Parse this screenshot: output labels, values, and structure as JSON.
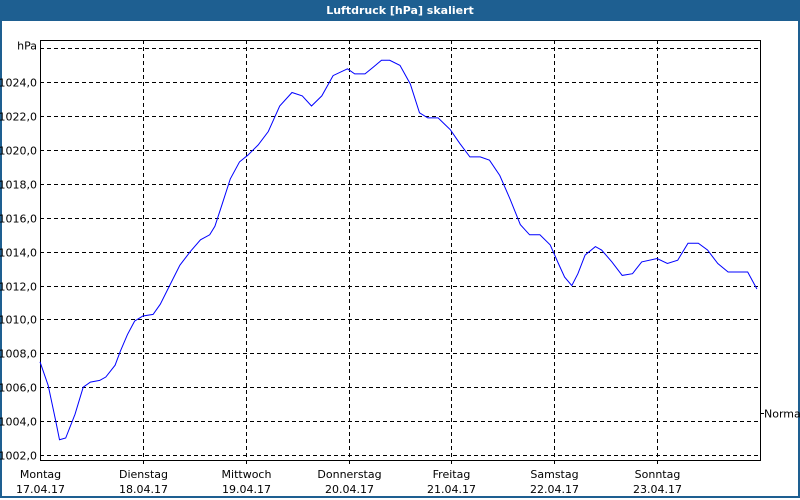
{
  "window": {
    "title": "Luftdruck [hPa] skaliert"
  },
  "chart_data": {
    "type": "line",
    "title": "Luftdruck [hPa] skaliert",
    "ylabel": "hPa",
    "xlabel": "",
    "ylim": [
      1001.7,
      1026.5
    ],
    "xlim": [
      0,
      7
    ],
    "grid": true,
    "y_ticks": [
      1002,
      1004,
      1006,
      1008,
      1010,
      1012,
      1014,
      1016,
      1018,
      1020,
      1022,
      1024
    ],
    "y_tick_labels": [
      "1002,0",
      "1004,0",
      "1006,0",
      "1008,0",
      "1010,0",
      "1012,0",
      "1014,0",
      "1016,0",
      "1018,0",
      "1020,0",
      "1022,0",
      "1024,0"
    ],
    "top_gridline": 1026,
    "x_ticks": [
      {
        "day": "Montag",
        "date": "17.04.17"
      },
      {
        "day": "Dienstag",
        "date": "18.04.17"
      },
      {
        "day": "Mittwoch",
        "date": "19.04.17"
      },
      {
        "day": "Donnerstag",
        "date": "20.04.17"
      },
      {
        "day": "Freitag",
        "date": "21.04.17"
      },
      {
        "day": "Samstag",
        "date": "22.04.17"
      },
      {
        "day": "Sonntag",
        "date": "23.04.17"
      }
    ],
    "reference": {
      "label": "Normal",
      "value": 1004.5
    },
    "series": [
      {
        "name": "Luftdruck",
        "color": "#0000ff",
        "x_days": [
          0,
          0.08,
          0.15,
          0.19,
          0.25,
          0.34,
          0.42,
          0.49,
          0.58,
          0.64,
          0.73,
          0.78,
          0.85,
          0.92,
          1.0,
          1.1,
          1.17,
          1.26,
          1.36,
          1.46,
          1.56,
          1.65,
          1.7,
          1.77,
          1.85,
          1.94,
          2.02,
          2.12,
          2.22,
          2.33,
          2.45,
          2.55,
          2.64,
          2.74,
          2.85,
          2.99,
          3.06,
          3.16,
          3.24,
          3.32,
          3.4,
          3.5,
          3.6,
          3.69,
          3.77,
          3.87,
          3.99,
          4.08,
          4.18,
          4.28,
          4.37,
          4.47,
          4.57,
          4.67,
          4.76,
          4.86,
          4.96,
          5.04,
          5.1,
          5.17,
          5.23,
          5.3,
          5.4,
          5.46,
          5.56,
          5.66,
          5.76,
          5.85,
          6.0,
          6.1,
          6.2,
          6.3,
          6.4,
          6.49,
          6.59,
          6.69,
          6.81,
          6.88,
          6.97
        ],
        "values": [
          1007.5,
          1006.1,
          1004.1,
          1002.9,
          1003.0,
          1004.4,
          1006.0,
          1006.3,
          1006.4,
          1006.6,
          1007.3,
          1008.1,
          1009.1,
          1009.9,
          1010.2,
          1010.3,
          1010.9,
          1012.0,
          1013.2,
          1014.0,
          1014.7,
          1015.0,
          1015.5,
          1016.8,
          1018.3,
          1019.3,
          1019.7,
          1020.3,
          1021.1,
          1022.6,
          1023.4,
          1023.2,
          1022.6,
          1023.2,
          1024.4,
          1024.8,
          1024.5,
          1024.5,
          1024.9,
          1025.3,
          1025.3,
          1025.0,
          1023.9,
          1022.2,
          1021.9,
          1021.9,
          1021.2,
          1020.4,
          1019.6,
          1019.6,
          1019.4,
          1018.5,
          1017.1,
          1015.6,
          1015.0,
          1015.0,
          1014.4,
          1013.3,
          1012.5,
          1012.0,
          1012.7,
          1013.8,
          1014.3,
          1014.1,
          1013.4,
          1012.6,
          1012.7,
          1013.4,
          1013.6,
          1013.3,
          1013.5,
          1014.5,
          1014.5,
          1014.1,
          1013.3,
          1012.8,
          1012.8,
          1012.8,
          1011.8
        ]
      }
    ]
  }
}
